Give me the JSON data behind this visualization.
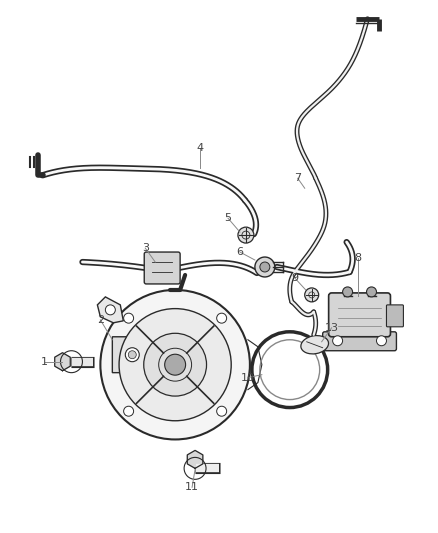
{
  "bg_color": "#ffffff",
  "fig_width": 4.38,
  "fig_height": 5.33,
  "dpi": 100,
  "line_color": "#2a2a2a",
  "label_color": "#444444",
  "label_fontsize": 8.0
}
